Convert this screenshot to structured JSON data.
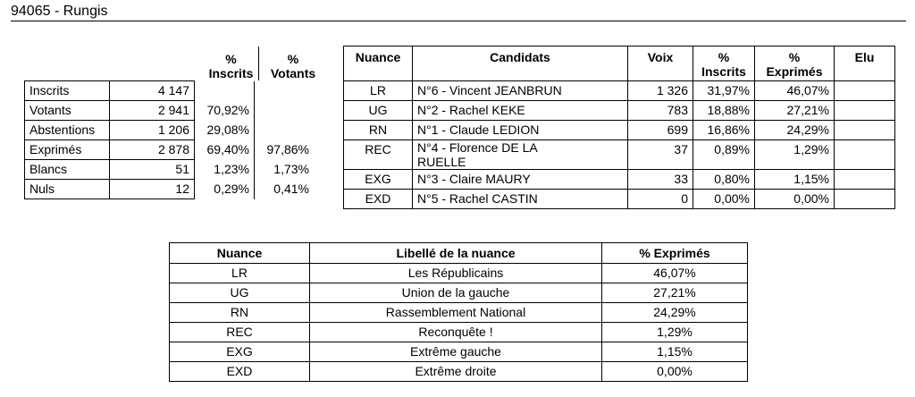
{
  "header": {
    "title": "94065 - Rungis"
  },
  "summary": {
    "col_inscrits": [
      "%",
      "Inscrits"
    ],
    "col_votants": [
      "%",
      "Votants"
    ],
    "rows": [
      {
        "label": "Inscrits",
        "value": "4 147",
        "pct_inscrits": "",
        "pct_votants": ""
      },
      {
        "label": "Votants",
        "value": "2 941",
        "pct_inscrits": "70,92%",
        "pct_votants": ""
      },
      {
        "label": "Abstentions",
        "value": "1 206",
        "pct_inscrits": "29,08%",
        "pct_votants": ""
      },
      {
        "label": "Exprimés",
        "value": "2 878",
        "pct_inscrits": "69,40%",
        "pct_votants": "97,86%"
      },
      {
        "label": "Blancs",
        "value": "51",
        "pct_inscrits": "1,23%",
        "pct_votants": "1,73%"
      },
      {
        "label": "Nuls",
        "value": "12",
        "pct_inscrits": "0,29%",
        "pct_votants": "0,41%"
      }
    ]
  },
  "candidates": {
    "headers": {
      "nuance": "Nuance",
      "candidats": "Candidats",
      "voix": "Voix",
      "inscrits": [
        "%",
        "Inscrits"
      ],
      "exprimes": [
        "%",
        "Exprimés"
      ],
      "elu": "Elu"
    },
    "rows": [
      {
        "nuance": "LR",
        "name": "N°6 - Vincent JEANBRUN",
        "voix": "1 326",
        "pct_inscrits": "31,97%",
        "pct_exprimes": "46,07%",
        "elu": ""
      },
      {
        "nuance": "UG",
        "name": "N°2 - Rachel KEKE",
        "voix": "783",
        "pct_inscrits": "18,88%",
        "pct_exprimes": "27,21%",
        "elu": ""
      },
      {
        "nuance": "RN",
        "name": "N°1 - Claude LEDION",
        "voix": "699",
        "pct_inscrits": "16,86%",
        "pct_exprimes": "24,29%",
        "elu": ""
      },
      {
        "nuance": "REC",
        "name": "N°4 - Florence DE LA RUELLE",
        "voix": "37",
        "pct_inscrits": "0,89%",
        "pct_exprimes": "1,29%",
        "elu": ""
      },
      {
        "nuance": "EXG",
        "name": "N°3 - Claire MAURY",
        "voix": "33",
        "pct_inscrits": "0,80%",
        "pct_exprimes": "1,15%",
        "elu": ""
      },
      {
        "nuance": "EXD",
        "name": "N°5 - Rachel CASTIN",
        "voix": "0",
        "pct_inscrits": "0,00%",
        "pct_exprimes": "0,00%",
        "elu": ""
      }
    ]
  },
  "nuances": {
    "headers": {
      "nuance": "Nuance",
      "libelle": "Libellé de la nuance",
      "exprimes": "% Exprimés"
    },
    "rows": [
      {
        "nuance": "LR",
        "libelle": "Les Républicains",
        "exprimes": "46,07%"
      },
      {
        "nuance": "UG",
        "libelle": "Union de la gauche",
        "exprimes": "27,21%"
      },
      {
        "nuance": "RN",
        "libelle": "Rassemblement National",
        "exprimes": "24,29%"
      },
      {
        "nuance": "REC",
        "libelle": "Reconquête !",
        "exprimes": "1,29%"
      },
      {
        "nuance": "EXG",
        "libelle": "Extrême gauche",
        "exprimes": "1,15%"
      },
      {
        "nuance": "EXD",
        "libelle": "Extrême droite",
        "exprimes": "0,00%"
      }
    ]
  }
}
